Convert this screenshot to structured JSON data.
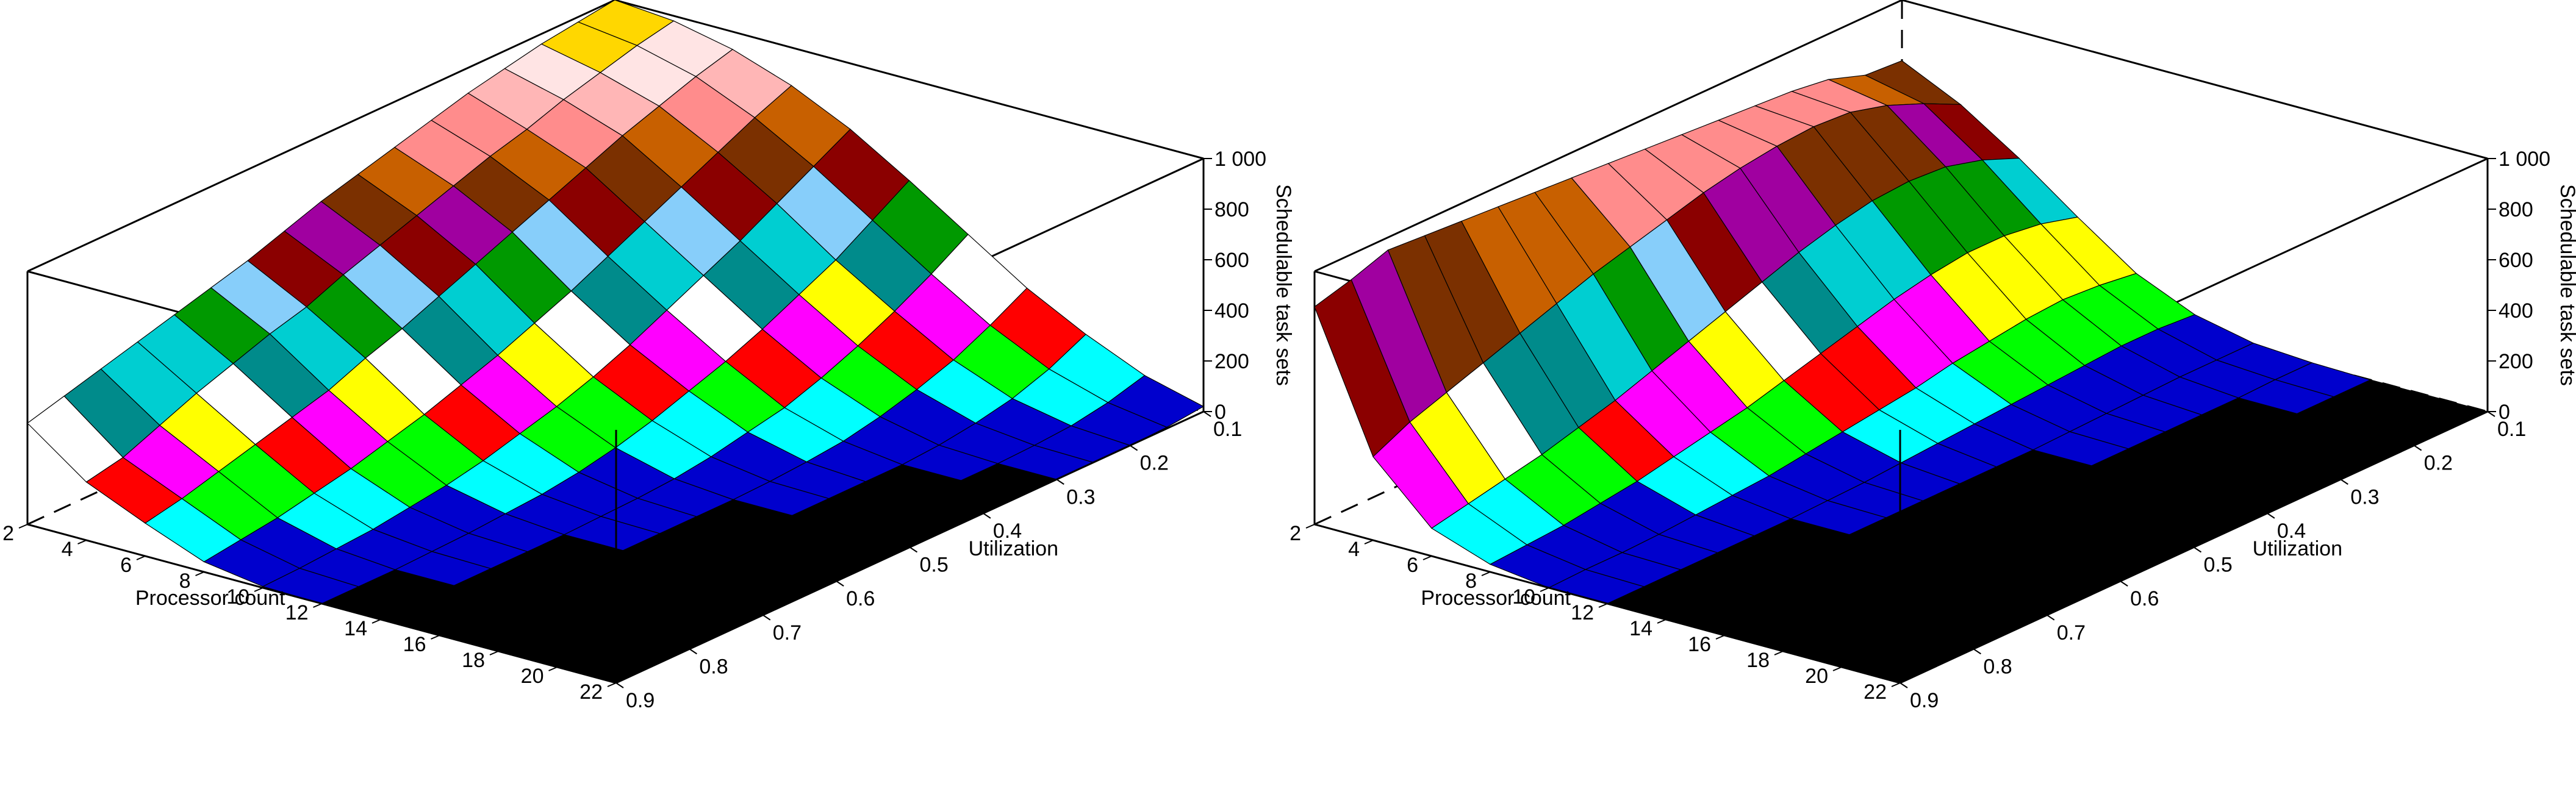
{
  "chart_data": [
    {
      "type": "surface3d",
      "title": "",
      "xlabel": "Processor count",
      "ylabel": "Utilization",
      "zlabel": "Schedulable task sets",
      "x_ticks": [
        "2",
        "4",
        "6",
        "8",
        "10",
        "12",
        "14",
        "16",
        "18",
        "20",
        "22"
      ],
      "y_ticks": [
        "0.1",
        "0.2",
        "0.3",
        "0.4",
        "0.5",
        "0.6",
        "0.7",
        "0.8",
        "0.9"
      ],
      "z_ticks": [
        "0",
        "200",
        "400",
        "600",
        "800",
        "1 000"
      ],
      "zlim": [
        0,
        1000
      ],
      "processors": [
        2,
        4,
        6,
        8,
        10,
        12,
        14,
        16,
        18,
        20,
        22
      ],
      "utilizations": [
        0.1,
        0.15,
        0.2,
        0.25,
        0.3,
        0.35,
        0.4,
        0.45,
        0.5,
        0.55,
        0.6,
        0.65,
        0.7,
        0.75,
        0.8,
        0.85,
        0.9
      ],
      "values": [
        [
          1000,
          980,
          960,
          930,
          900,
          860,
          820,
          780,
          740,
          690,
          640,
          600,
          560,
          520,
          480,
          440,
          400
        ],
        [
          980,
          950,
          910,
          870,
          820,
          780,
          730,
          680,
          630,
          580,
          520,
          480,
          430,
          380,
          320,
          260,
          230
        ],
        [
          930,
          890,
          840,
          790,
          730,
          670,
          610,
          550,
          490,
          430,
          380,
          320,
          280,
          240,
          200,
          160,
          130
        ],
        [
          850,
          790,
          720,
          650,
          580,
          510,
          440,
          380,
          320,
          270,
          220,
          180,
          140,
          110,
          80,
          60,
          40
        ],
        [
          740,
          660,
          580,
          500,
          430,
          360,
          290,
          230,
          180,
          140,
          100,
          70,
          50,
          30,
          20,
          10,
          5
        ],
        [
          600,
          510,
          420,
          350,
          280,
          220,
          170,
          120,
          80,
          50,
          30,
          20,
          10,
          5,
          0,
          0,
          0
        ],
        [
          450,
          360,
          280,
          210,
          150,
          100,
          70,
          40,
          20,
          10,
          5,
          0,
          0,
          0,
          0,
          0,
          0
        ],
        [
          300,
          220,
          150,
          100,
          60,
          30,
          15,
          5,
          0,
          0,
          0,
          0,
          0,
          0,
          0,
          0,
          0
        ],
        [
          180,
          110,
          60,
          30,
          10,
          0,
          0,
          0,
          0,
          0,
          0,
          0,
          0,
          0,
          0,
          0,
          0
        ],
        [
          80,
          40,
          15,
          5,
          0,
          0,
          0,
          0,
          0,
          0,
          0,
          0,
          0,
          0,
          0,
          0,
          0
        ],
        [
          20,
          5,
          0,
          0,
          0,
          0,
          0,
          0,
          0,
          0,
          0,
          0,
          0,
          0,
          0,
          0,
          0
        ]
      ]
    },
    {
      "type": "surface3d",
      "title": "",
      "xlabel": "Processor count",
      "ylabel": "Utilization",
      "zlabel": "Schedulable task sets",
      "x_ticks": [
        "2",
        "4",
        "6",
        "8",
        "10",
        "12",
        "14",
        "16",
        "18",
        "20",
        "22"
      ],
      "y_ticks": [
        "0.1",
        "0.2",
        "0.3",
        "0.4",
        "0.5",
        "0.6",
        "0.7",
        "0.8",
        "0.9"
      ],
      "z_ticks": [
        "0",
        "200",
        "400",
        "600",
        "800",
        "1 000"
      ],
      "zlim": [
        0,
        1000
      ],
      "processors": [
        2,
        4,
        6,
        8,
        10,
        12,
        14,
        16,
        18,
        20,
        22
      ],
      "utilizations": [
        0.1,
        0.15,
        0.2,
        0.25,
        0.3,
        0.35,
        0.4,
        0.45,
        0.5,
        0.55,
        0.6,
        0.65,
        0.7,
        0.75,
        0.8,
        0.85,
        0.9
      ],
      "values": [
        [
          760,
          770,
          820,
          840,
          850,
          860,
          870,
          880,
          890,
          900,
          910,
          920,
          930,
          940,
          950,
          900,
          860
        ],
        [
          650,
          720,
          780,
          820,
          830,
          820,
          800,
          770,
          730,
          690,
          650,
          600,
          550,
          500,
          450,
          400,
          330
        ],
        [
          500,
          560,
          600,
          610,
          600,
          570,
          530,
          480,
          430,
          380,
          330,
          280,
          240,
          200,
          170,
          140,
          110
        ],
        [
          330,
          370,
          390,
          390,
          370,
          340,
          300,
          260,
          220,
          180,
          150,
          120,
          90,
          70,
          50,
          40,
          30
        ],
        [
          170,
          190,
          200,
          190,
          170,
          150,
          120,
          100,
          80,
          60,
          40,
          30,
          20,
          10,
          5,
          5,
          0
        ],
        [
          70,
          80,
          80,
          70,
          60,
          50,
          40,
          30,
          20,
          10,
          5,
          0,
          0,
          0,
          0,
          0,
          0
        ],
        [
          20,
          20,
          20,
          15,
          10,
          5,
          0,
          0,
          0,
          0,
          0,
          0,
          0,
          0,
          0,
          0,
          0
        ],
        [
          5,
          5,
          0,
          0,
          0,
          0,
          0,
          0,
          0,
          0,
          0,
          0,
          0,
          0,
          0,
          0,
          0
        ],
        [
          0,
          0,
          0,
          0,
          0,
          0,
          0,
          0,
          0,
          0,
          0,
          0,
          0,
          0,
          0,
          0,
          0
        ],
        [
          0,
          0,
          0,
          0,
          0,
          0,
          0,
          0,
          0,
          0,
          0,
          0,
          0,
          0,
          0,
          0,
          0
        ],
        [
          0,
          0,
          0,
          0,
          0,
          0,
          0,
          0,
          0,
          0,
          0,
          0,
          0,
          0,
          0,
          0,
          0
        ]
      ]
    }
  ]
}
